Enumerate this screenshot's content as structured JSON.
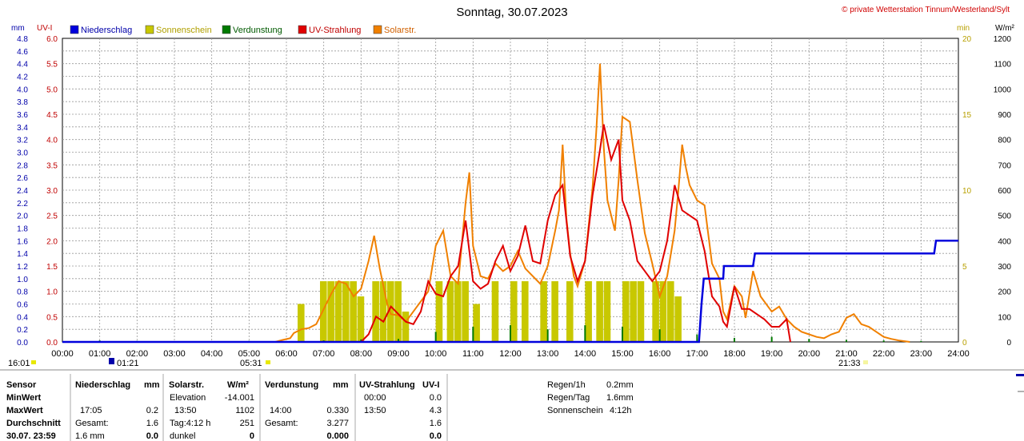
{
  "title": "Sonntag, 30.07.2023",
  "copyright": "© private Wetterstation Tinnum/Westerland/Sylt",
  "colors": {
    "rain": "#0000dd",
    "sunshine": "#c8c800",
    "evaporation": "#007a00",
    "uv": "#e00000",
    "solar": "#f08000",
    "left_axis": "#0000aa",
    "uv_axis": "#c00000",
    "right_axis": "#b8a000"
  },
  "units": {
    "mm": "mm",
    "uv": "UV-I",
    "min": "min",
    "wm2": "W/m²"
  },
  "legend": [
    {
      "label": "Niederschlag",
      "color": "#0000dd",
      "text_color": "#0000aa"
    },
    {
      "label": "Sonnenschein",
      "color": "#c8c800",
      "text_color": "#b0a000"
    },
    {
      "label": "Verdunstung",
      "color": "#007a00",
      "text_color": "#005a00"
    },
    {
      "label": "UV-Strahlung",
      "color": "#e00000",
      "text_color": "#c00000"
    },
    {
      "label": "Solarstr.",
      "color": "#f08000",
      "text_color": "#d06000"
    }
  ],
  "markers": {
    "sunrise_prev": "16:01",
    "dawn": "01:21",
    "sunrise": "05:31",
    "sunset": "21:33"
  },
  "chart_data": {
    "type": "line",
    "x_range_hours": [
      0,
      24
    ],
    "x_ticks": [
      "00:00",
      "01:00",
      "02:00",
      "03:00",
      "04:00",
      "05:00",
      "06:00",
      "07:00",
      "08:00",
      "09:00",
      "10:00",
      "11:00",
      "12:00",
      "13:00",
      "14:00",
      "15:00",
      "16:00",
      "17:00",
      "18:00",
      "19:00",
      "20:00",
      "21:00",
      "22:00",
      "23:00",
      "24:00"
    ],
    "axes": {
      "mm": {
        "range": [
          0,
          4.8
        ],
        "ticks": [
          "0.0",
          "0.2",
          "0.4",
          "0.6",
          "0.8",
          "1.0",
          "1.2",
          "1.4",
          "1.6",
          "1.8",
          "2.0",
          "2.2",
          "2.4",
          "2.6",
          "2.8",
          "3.0",
          "3.2",
          "3.4",
          "3.6",
          "3.8",
          "4.0",
          "4.2",
          "4.4",
          "4.6",
          "4.8"
        ]
      },
      "uv": {
        "range": [
          0,
          6.0
        ],
        "ticks": [
          "0.0",
          "0.5",
          "1.0",
          "1.5",
          "2.0",
          "2.5",
          "3.0",
          "3.5",
          "4.0",
          "4.5",
          "5.0",
          "5.5",
          "6.0"
        ]
      },
      "min": {
        "range": [
          0,
          20
        ],
        "ticks": [
          "0",
          "5",
          "10",
          "15",
          "20"
        ]
      },
      "wm2": {
        "range": [
          0,
          1200
        ],
        "ticks": [
          "0",
          "100",
          "200",
          "300",
          "400",
          "500",
          "600",
          "700",
          "800",
          "900",
          "1000",
          "1100",
          "1200"
        ]
      }
    },
    "series": [
      {
        "name": "Niederschlag",
        "unit": "mm",
        "points": [
          [
            0,
            0
          ],
          [
            17.05,
            0
          ],
          [
            17.12,
            0.6
          ],
          [
            17.18,
            1.0
          ],
          [
            17.7,
            1.0
          ],
          [
            17.72,
            1.2
          ],
          [
            18.5,
            1.2
          ],
          [
            18.55,
            1.4
          ],
          [
            23.35,
            1.4
          ],
          [
            23.4,
            1.6
          ],
          [
            24,
            1.6
          ]
        ]
      },
      {
        "name": "Solarstr.",
        "unit": "W/m²",
        "points": [
          [
            5.7,
            0
          ],
          [
            5.9,
            8
          ],
          [
            6.1,
            15
          ],
          [
            6.2,
            35
          ],
          [
            6.4,
            50
          ],
          [
            6.6,
            55
          ],
          [
            6.8,
            70
          ],
          [
            7.0,
            130
          ],
          [
            7.2,
            190
          ],
          [
            7.4,
            240
          ],
          [
            7.6,
            230
          ],
          [
            7.8,
            180
          ],
          [
            8.0,
            210
          ],
          [
            8.2,
            320
          ],
          [
            8.35,
            420
          ],
          [
            8.5,
            290
          ],
          [
            8.7,
            150
          ],
          [
            8.8,
            110
          ],
          [
            9.0,
            105
          ],
          [
            9.2,
            80
          ],
          [
            9.5,
            140
          ],
          [
            9.8,
            200
          ],
          [
            10.0,
            380
          ],
          [
            10.2,
            440
          ],
          [
            10.4,
            260
          ],
          [
            10.6,
            230
          ],
          [
            10.8,
            550
          ],
          [
            10.9,
            670
          ],
          [
            11.0,
            380
          ],
          [
            11.2,
            260
          ],
          [
            11.4,
            250
          ],
          [
            11.6,
            310
          ],
          [
            11.8,
            280
          ],
          [
            12.0,
            300
          ],
          [
            12.2,
            360
          ],
          [
            12.4,
            290
          ],
          [
            12.6,
            260
          ],
          [
            12.8,
            230
          ],
          [
            13.0,
            300
          ],
          [
            13.2,
            440
          ],
          [
            13.3,
            520
          ],
          [
            13.4,
            780
          ],
          [
            13.5,
            490
          ],
          [
            13.6,
            350
          ],
          [
            13.7,
            260
          ],
          [
            13.8,
            220
          ],
          [
            14.0,
            320
          ],
          [
            14.2,
            610
          ],
          [
            14.3,
            830
          ],
          [
            14.4,
            1100
          ],
          [
            14.5,
            770
          ],
          [
            14.6,
            560
          ],
          [
            14.7,
            500
          ],
          [
            14.8,
            440
          ],
          [
            14.9,
            640
          ],
          [
            15.0,
            890
          ],
          [
            15.2,
            870
          ],
          [
            15.4,
            640
          ],
          [
            15.6,
            430
          ],
          [
            15.8,
            310
          ],
          [
            16.0,
            180
          ],
          [
            16.2,
            260
          ],
          [
            16.4,
            440
          ],
          [
            16.5,
            600
          ],
          [
            16.6,
            780
          ],
          [
            16.7,
            690
          ],
          [
            16.8,
            620
          ],
          [
            17.0,
            560
          ],
          [
            17.2,
            540
          ],
          [
            17.4,
            310
          ],
          [
            17.6,
            250
          ],
          [
            17.7,
            120
          ],
          [
            17.8,
            90
          ],
          [
            18.0,
            220
          ],
          [
            18.2,
            180
          ],
          [
            18.3,
            95
          ],
          [
            18.5,
            280
          ],
          [
            18.7,
            180
          ],
          [
            18.9,
            140
          ],
          [
            19.0,
            120
          ],
          [
            19.2,
            140
          ],
          [
            19.4,
            90
          ],
          [
            19.6,
            60
          ],
          [
            19.8,
            40
          ],
          [
            20.0,
            30
          ],
          [
            20.2,
            20
          ],
          [
            20.4,
            15
          ],
          [
            20.6,
            30
          ],
          [
            20.8,
            40
          ],
          [
            21.0,
            95
          ],
          [
            21.2,
            110
          ],
          [
            21.4,
            70
          ],
          [
            21.6,
            60
          ],
          [
            21.8,
            40
          ],
          [
            22.0,
            20
          ],
          [
            22.2,
            12
          ],
          [
            22.4,
            6
          ],
          [
            22.6,
            2
          ],
          [
            22.7,
            0
          ]
        ]
      },
      {
        "name": "UV-Strahlung",
        "unit": "UV-I",
        "points": [
          [
            8.0,
            0
          ],
          [
            8.2,
            0.15
          ],
          [
            8.4,
            0.5
          ],
          [
            8.6,
            0.4
          ],
          [
            8.8,
            0.7
          ],
          [
            9.0,
            0.55
          ],
          [
            9.2,
            0.4
          ],
          [
            9.4,
            0.35
          ],
          [
            9.6,
            0.6
          ],
          [
            9.8,
            1.2
          ],
          [
            10.0,
            0.95
          ],
          [
            10.2,
            0.9
          ],
          [
            10.4,
            1.3
          ],
          [
            10.6,
            1.5
          ],
          [
            10.8,
            2.4
          ],
          [
            11.0,
            1.2
          ],
          [
            11.2,
            1.05
          ],
          [
            11.4,
            1.15
          ],
          [
            11.6,
            1.6
          ],
          [
            11.8,
            1.9
          ],
          [
            12.0,
            1.4
          ],
          [
            12.2,
            1.7
          ],
          [
            12.4,
            2.3
          ],
          [
            12.6,
            1.6
          ],
          [
            12.8,
            1.55
          ],
          [
            13.0,
            2.4
          ],
          [
            13.2,
            2.9
          ],
          [
            13.4,
            3.1
          ],
          [
            13.6,
            1.7
          ],
          [
            13.8,
            1.2
          ],
          [
            14.0,
            1.6
          ],
          [
            14.2,
            2.9
          ],
          [
            14.4,
            3.8
          ],
          [
            14.5,
            4.3
          ],
          [
            14.7,
            3.6
          ],
          [
            14.9,
            4.0
          ],
          [
            15.0,
            2.8
          ],
          [
            15.2,
            2.4
          ],
          [
            15.4,
            1.6
          ],
          [
            15.6,
            1.4
          ],
          [
            15.8,
            1.2
          ],
          [
            16.0,
            1.4
          ],
          [
            16.2,
            2.0
          ],
          [
            16.4,
            3.1
          ],
          [
            16.6,
            2.6
          ],
          [
            16.8,
            2.5
          ],
          [
            17.0,
            2.4
          ],
          [
            17.2,
            1.8
          ],
          [
            17.4,
            0.9
          ],
          [
            17.6,
            0.7
          ],
          [
            17.7,
            0.4
          ],
          [
            17.8,
            0.3
          ],
          [
            18.0,
            1.1
          ],
          [
            18.2,
            0.65
          ],
          [
            18.4,
            0.65
          ],
          [
            18.6,
            0.55
          ],
          [
            18.8,
            0.45
          ],
          [
            19.0,
            0.3
          ],
          [
            19.2,
            0.3
          ],
          [
            19.4,
            0.45
          ],
          [
            19.5,
            0.0
          ]
        ]
      },
      {
        "name": "Verdunstung",
        "unit": "mm",
        "spikes": [
          [
            1.0,
            0.03
          ],
          [
            2.0,
            0.02
          ],
          [
            5.0,
            0.02
          ],
          [
            7.0,
            0.03
          ],
          [
            8.0,
            0.05
          ],
          [
            9.0,
            0.06
          ],
          [
            10.0,
            0.2
          ],
          [
            11.0,
            0.3
          ],
          [
            12.0,
            0.33
          ],
          [
            13.0,
            0.25
          ],
          [
            14.0,
            0.33
          ],
          [
            15.0,
            0.3
          ],
          [
            16.0,
            0.25
          ],
          [
            17.0,
            0.15
          ],
          [
            18.0,
            0.08
          ],
          [
            19.0,
            0.1
          ],
          [
            20.0,
            0.06
          ],
          [
            21.0,
            0.04
          ],
          [
            22.0,
            0.03
          ],
          [
            23.0,
            0.02
          ]
        ]
      },
      {
        "name": "Sonnenschein",
        "unit": "min",
        "bars": [
          [
            6.3,
            0.5
          ],
          [
            6.9,
            0.8
          ],
          [
            7.1,
            0.8
          ],
          [
            7.3,
            0.8
          ],
          [
            7.5,
            0.8
          ],
          [
            7.7,
            0.8
          ],
          [
            7.9,
            0.6
          ],
          [
            8.3,
            0.8
          ],
          [
            8.5,
            0.8
          ],
          [
            8.7,
            0.8
          ],
          [
            8.9,
            0.8
          ],
          [
            9.1,
            0.4
          ],
          [
            10.0,
            0.8
          ],
          [
            10.3,
            0.8
          ],
          [
            10.5,
            0.8
          ],
          [
            10.7,
            0.8
          ],
          [
            11.0,
            0.5
          ],
          [
            11.5,
            0.8
          ],
          [
            12.0,
            0.8
          ],
          [
            12.3,
            0.8
          ],
          [
            12.8,
            0.8
          ],
          [
            13.1,
            0.8
          ],
          [
            13.5,
            0.8
          ],
          [
            14.0,
            0.8
          ],
          [
            14.3,
            0.8
          ],
          [
            14.5,
            0.8
          ],
          [
            15.0,
            0.8
          ],
          [
            15.2,
            0.8
          ],
          [
            15.4,
            0.8
          ],
          [
            15.8,
            0.8
          ],
          [
            16.0,
            0.8
          ],
          [
            16.2,
            0.8
          ],
          [
            16.4,
            0.6
          ]
        ]
      }
    ]
  },
  "stats": {
    "headers": {
      "sensor": "Sensor",
      "rain": "Niederschlag",
      "rain_unit": "mm",
      "solar": "Solarstr.",
      "solar_unit": "W/m²",
      "evap": "Verdunstung",
      "evap_unit": "mm",
      "uv": "UV-Strahlung",
      "uv_unit": "UV-I"
    },
    "rows": {
      "min": "MinWert",
      "max": "MaxWert",
      "avg": "Durchschnitt",
      "last": "30.07. 23:59"
    },
    "rain": {
      "max_time": "17:05",
      "max_val": "0.2",
      "total_label": "Gesamt:",
      "total_val": "1.6",
      "last_val": "1.6 mm",
      "last_num": "0.0"
    },
    "solar": {
      "elev_label": "Elevation",
      "elev_val": "-14.001",
      "max_time": "13:50",
      "max_val": "1102",
      "day_label": "Tag:4:12 h",
      "avg_val": "251",
      "last_label": "dunkel",
      "last_val": "0"
    },
    "evap": {
      "max_time": "14:00",
      "max_val": "0.330",
      "total_label": "Gesamt:",
      "total_val": "3.277",
      "last_val": "0.000"
    },
    "uv": {
      "min_time": "00:00",
      "min_val": "0.0",
      "max_time": "13:50",
      "max_val": "4.3",
      "avg_val": "1.6",
      "last_val": "0.0"
    },
    "summary": [
      {
        "label": "Regen/1h",
        "value": "0.2mm"
      },
      {
        "label": "Regen/Tag",
        "value": "1.6mm"
      },
      {
        "label": "Sonnenschein",
        "value": "4:12h"
      }
    ]
  }
}
